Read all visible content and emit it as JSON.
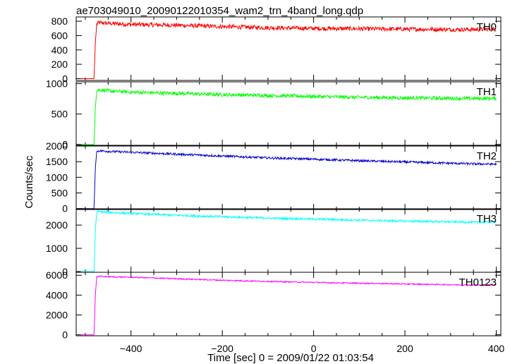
{
  "chart_data": {
    "type": "line",
    "title": "ae703049010_20090122010354_wam2_trn_4band_long.qdp",
    "xlabel": "Time [sec] 0 = 2009/01/22 01:03:54",
    "ylabel": "Counts/sec",
    "xlim": [
      -520,
      410
    ],
    "x_ticks": [
      -400,
      -200,
      0,
      200,
      400
    ],
    "x_tick_labels": [
      "−400",
      "−200",
      "0",
      "200",
      "400"
    ],
    "grid": false,
    "panels": [
      {
        "name": "TH0",
        "color": "#ff0000",
        "ylim": [
          -25,
          860
        ],
        "y_ticks": [
          0,
          200,
          400,
          600,
          800
        ],
        "x": [
          -510,
          -481,
          -480,
          -478,
          -475,
          -470,
          -450,
          -400,
          -300,
          -200,
          -100,
          0,
          100,
          200,
          300,
          350,
          400
        ],
        "values": [
          0,
          0,
          150,
          500,
          760,
          780,
          770,
          755,
          745,
          725,
          710,
          700,
          695,
          690,
          685,
          685,
          690
        ],
        "noise": 30
      },
      {
        "name": "TH1",
        "color": "#00ff00",
        "ylim": [
          -15,
          1030
        ],
        "y_ticks": [
          0,
          500,
          1000
        ],
        "x": [
          -510,
          -481,
          -480,
          -478,
          -475,
          -470,
          -450,
          -400,
          -300,
          -200,
          -100,
          0,
          100,
          200,
          300,
          350,
          400
        ],
        "values": [
          0,
          0,
          200,
          600,
          880,
          900,
          880,
          860,
          840,
          820,
          805,
          790,
          775,
          765,
          760,
          755,
          760
        ],
        "noise": 30
      },
      {
        "name": "TH2",
        "color": "#0000cc",
        "ylim": [
          -30,
          2000
        ],
        "y_ticks": [
          0,
          500,
          1000,
          1500,
          2000
        ],
        "x": [
          -510,
          -481,
          -480,
          -478,
          -475,
          -470,
          -450,
          -400,
          -300,
          -200,
          -100,
          0,
          100,
          200,
          300,
          350,
          400
        ],
        "values": [
          0,
          0,
          400,
          1300,
          1820,
          1850,
          1830,
          1800,
          1740,
          1680,
          1620,
          1580,
          1530,
          1490,
          1450,
          1430,
          1420
        ],
        "noise": 35
      },
      {
        "name": "TH3",
        "color": "#00ffff",
        "ylim": [
          -30,
          2700
        ],
        "y_ticks": [
          0,
          1000,
          2000
        ],
        "x": [
          -510,
          -481,
          -480,
          -478,
          -475,
          -470,
          -450,
          -400,
          -300,
          -200,
          -100,
          0,
          100,
          200,
          300,
          350,
          400
        ],
        "values": [
          0,
          0,
          500,
          1800,
          2560,
          2580,
          2550,
          2500,
          2420,
          2360,
          2300,
          2260,
          2210,
          2170,
          2140,
          2120,
          2140
        ],
        "noise": 45
      },
      {
        "name": "TH0123",
        "color": "#ff00ff",
        "ylim": [
          -100,
          6300
        ],
        "y_ticks": [
          0,
          2000,
          4000,
          6000
        ],
        "x": [
          -510,
          -481,
          -480,
          -478,
          -475,
          -470,
          -450,
          -400,
          -300,
          -200,
          -100,
          0,
          100,
          200,
          300,
          350,
          400
        ],
        "values": [
          0,
          0,
          1200,
          4000,
          5850,
          5900,
          5850,
          5800,
          5650,
          5500,
          5380,
          5280,
          5200,
          5120,
          5050,
          5000,
          5050
        ],
        "noise": 60
      }
    ]
  }
}
